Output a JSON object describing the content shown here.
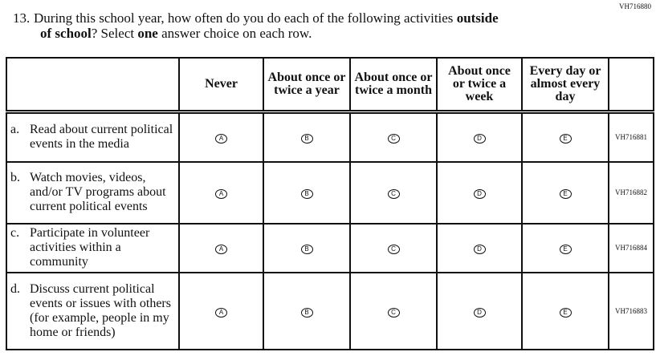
{
  "question_id": "VH716880",
  "question": {
    "number": "13.",
    "text_1": "During this school year, how often do you do each of the following activities ",
    "bold_1": "outside",
    "text_2": "of school",
    "text_3": "? Select ",
    "bold_2": "one",
    "text_4": " answer choice on each row."
  },
  "columns": [
    {
      "label": "Never",
      "letter": "A"
    },
    {
      "label": "About once or twice a year",
      "letter": "B"
    },
    {
      "label": "About once or twice a month",
      "letter": "C"
    },
    {
      "label": "About once or twice a week",
      "letter": "D"
    },
    {
      "label": "Every day or almost every day",
      "letter": "E"
    }
  ],
  "rows": [
    {
      "letter": "a.",
      "text": "Read about current political events in the media",
      "id": "VH716881"
    },
    {
      "letter": "b.",
      "text": "Watch movies, videos, and/or TV programs about current political events",
      "id": "VH716882"
    },
    {
      "letter": "c.",
      "text": "Participate in volunteer activities within a community",
      "id": "VH716884"
    },
    {
      "letter": "d.",
      "text": "Discuss current political events or issues with others (for example, people in my home or friends)",
      "id": "VH716883"
    }
  ]
}
